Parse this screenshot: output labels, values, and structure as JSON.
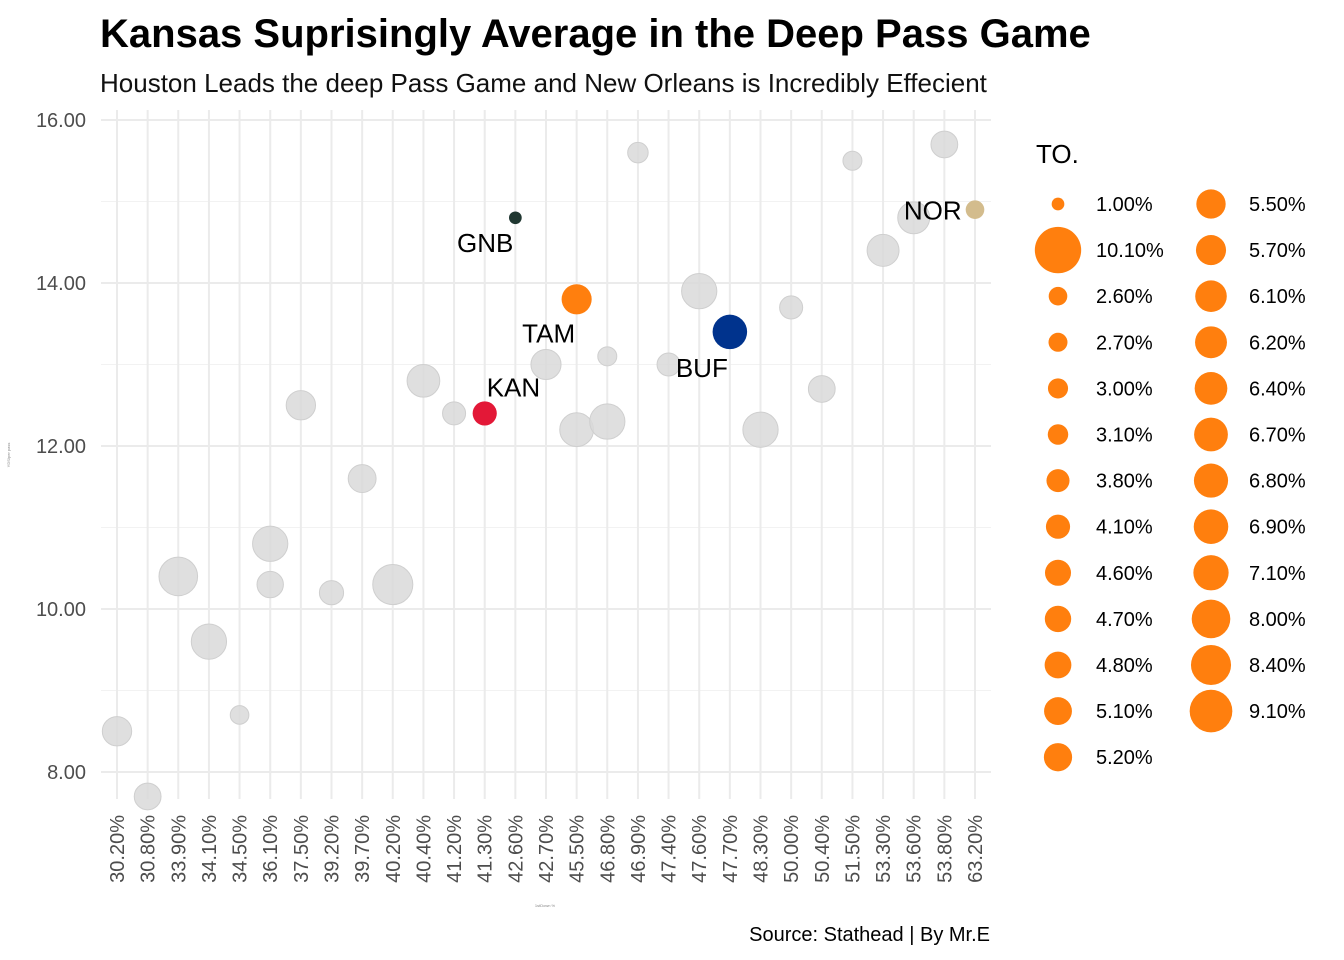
{
  "chart_data": {
    "type": "scatter",
    "title": "Kansas Suprisingly Average in the Deep Pass Game",
    "subtitle": "Houston Leads the deep Pass Game and New Orleans is Incredibly Effecient",
    "xlabel": "1stDown %",
    "ylabel": "YDS/per pass",
    "caption": "Source: Stathead | By Mr.E",
    "x_type": "categorical",
    "categories": [
      "30.20%",
      "30.80%",
      "33.90%",
      "34.10%",
      "34.50%",
      "36.10%",
      "37.50%",
      "39.20%",
      "39.70%",
      "40.20%",
      "40.40%",
      "41.20%",
      "41.30%",
      "42.60%",
      "42.70%",
      "45.50%",
      "46.80%",
      "46.90%",
      "47.40%",
      "47.60%",
      "47.70%",
      "48.30%",
      "50.00%",
      "50.40%",
      "51.50%",
      "53.30%",
      "53.60%",
      "53.80%",
      "63.20%"
    ],
    "ylim": [
      7.4,
      16.2
    ],
    "yticks": [
      "8.00",
      "10.00",
      "12.00",
      "14.00",
      "16.00"
    ],
    "grid": true,
    "size_legend": {
      "title": "TO.",
      "placement": "right",
      "color": "#FF7F0E",
      "entries": [
        "1.00%",
        "10.10%",
        "2.60%",
        "2.70%",
        "3.00%",
        "3.10%",
        "3.80%",
        "4.10%",
        "4.60%",
        "4.70%",
        "4.80%",
        "5.10%",
        "5.20%",
        "5.50%",
        "5.70%",
        "6.10%",
        "6.20%",
        "6.40%",
        "6.70%",
        "6.80%",
        "6.90%",
        "7.10%",
        "8.00%",
        "8.40%",
        "9.10%"
      ]
    },
    "points": [
      {
        "x": "30.20%",
        "y": 8.5,
        "to": 5.5,
        "color": "#D9D9D9"
      },
      {
        "x": "30.80%",
        "y": 7.7,
        "to": 4.8,
        "color": "#D9D9D9"
      },
      {
        "x": "33.90%",
        "y": 10.4,
        "to": 8.0,
        "color": "#D9D9D9"
      },
      {
        "x": "34.10%",
        "y": 9.6,
        "to": 7.1,
        "color": "#D9D9D9"
      },
      {
        "x": "34.50%",
        "y": 8.7,
        "to": 2.6,
        "color": "#D9D9D9"
      },
      {
        "x": "36.10%",
        "y": 10.8,
        "to": 7.1,
        "color": "#D9D9D9"
      },
      {
        "x": "36.10%",
        "y": 10.3,
        "to": 4.7,
        "color": "#D9D9D9"
      },
      {
        "x": "37.50%",
        "y": 12.5,
        "to": 5.5,
        "color": "#D9D9D9"
      },
      {
        "x": "39.20%",
        "y": 10.2,
        "to": 4.1,
        "color": "#D9D9D9"
      },
      {
        "x": "39.70%",
        "y": 11.6,
        "to": 5.1,
        "color": "#D9D9D9"
      },
      {
        "x": "40.20%",
        "y": 10.3,
        "to": 8.4,
        "color": "#D9D9D9"
      },
      {
        "x": "40.40%",
        "y": 12.8,
        "to": 6.4,
        "color": "#D9D9D9"
      },
      {
        "x": "41.20%",
        "y": 12.4,
        "to": 3.8,
        "color": "#D9D9D9"
      },
      {
        "x": "41.30%",
        "y": 12.4,
        "to": 4.1,
        "color": "#E31837",
        "label": "KAN"
      },
      {
        "x": "42.60%",
        "y": 14.8,
        "to": 1.0,
        "color": "#203731",
        "label": "GNB"
      },
      {
        "x": "42.70%",
        "y": 13.0,
        "to": 5.7,
        "color": "#D9D9D9"
      },
      {
        "x": "45.50%",
        "y": 13.8,
        "to": 5.7,
        "color": "#FF7F0E",
        "label": "TAM"
      },
      {
        "x": "45.50%",
        "y": 12.2,
        "to": 6.7,
        "color": "#D9D9D9"
      },
      {
        "x": "46.80%",
        "y": 12.3,
        "to": 7.1,
        "color": "#D9D9D9"
      },
      {
        "x": "46.80%",
        "y": 13.1,
        "to": 2.7,
        "color": "#D9D9D9"
      },
      {
        "x": "46.90%",
        "y": 15.6,
        "to": 3.1,
        "color": "#D9D9D9"
      },
      {
        "x": "47.40%",
        "y": 13.0,
        "to": 3.8,
        "color": "#D9D9D9"
      },
      {
        "x": "47.60%",
        "y": 13.9,
        "to": 7.1,
        "color": "#D9D9D9"
      },
      {
        "x": "47.70%",
        "y": 13.4,
        "to": 6.9,
        "color": "#00338D",
        "label": "BUF"
      },
      {
        "x": "48.30%",
        "y": 12.2,
        "to": 7.1,
        "color": "#D9D9D9"
      },
      {
        "x": "50.00%",
        "y": 13.7,
        "to": 3.8,
        "color": "#D9D9D9"
      },
      {
        "x": "50.40%",
        "y": 12.7,
        "to": 4.8,
        "color": "#D9D9D9"
      },
      {
        "x": "51.50%",
        "y": 15.5,
        "to": 2.7,
        "color": "#D9D9D9"
      },
      {
        "x": "53.30%",
        "y": 14.4,
        "to": 6.2,
        "color": "#D9D9D9"
      },
      {
        "x": "53.60%",
        "y": 14.8,
        "to": 6.2,
        "color": "#D9D9D9"
      },
      {
        "x": "53.80%",
        "y": 15.7,
        "to": 4.8,
        "color": "#D9D9D9"
      },
      {
        "x": "63.20%",
        "y": 14.9,
        "to": 2.6,
        "color": "#D3BC8D",
        "label": "NOR"
      }
    ]
  }
}
